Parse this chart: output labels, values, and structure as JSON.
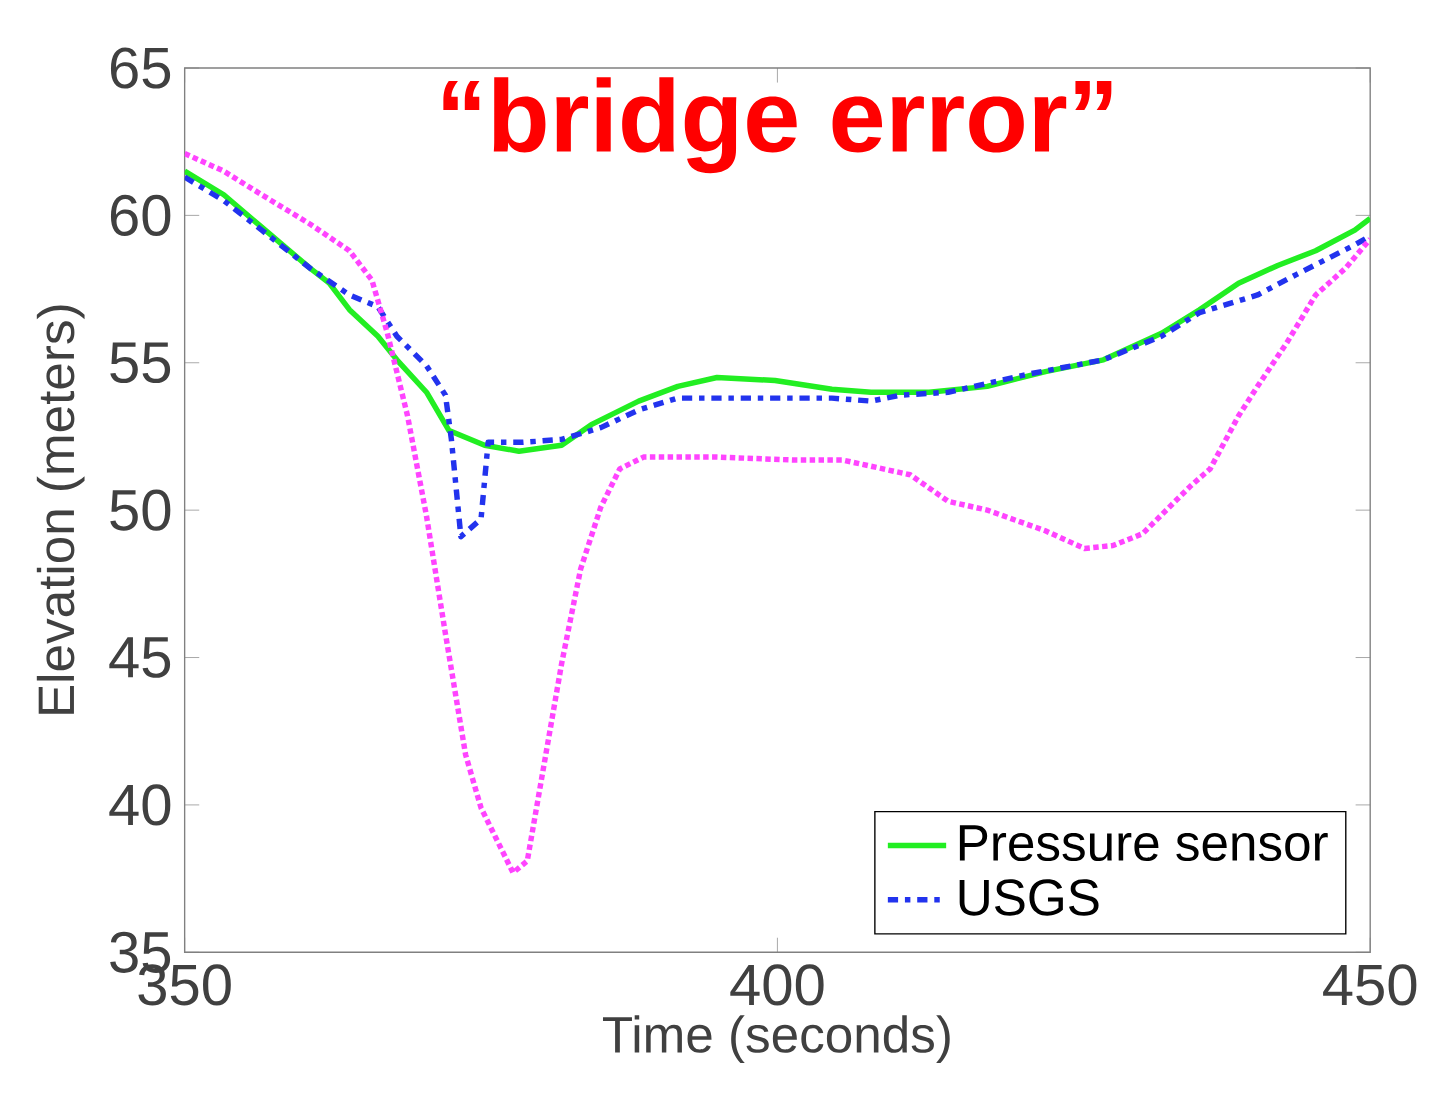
{
  "chart_data": {
    "type": "line",
    "title": "“bridge error”",
    "xlabel": "Time (seconds)",
    "ylabel": "Elevation (meters)",
    "xlim": [
      350,
      450
    ],
    "xticks": [
      350,
      400,
      450
    ],
    "ylim": [
      35,
      65
    ],
    "yticks": [
      35,
      40,
      45,
      50,
      55,
      60,
      65
    ],
    "grid": false,
    "legend": "bottom right",
    "series": [
      {
        "name": "Pressure sensor",
        "color": "#22ee22",
        "line_style": "solid",
        "x": [
          350,
          353.3,
          356.5,
          360.6,
          362.2,
          363.9,
          366.3,
          367.9,
          370.4,
          372.3,
          375.3,
          378.2,
          381.8,
          384.3,
          388.3,
          391.6,
          394.9,
          399.8,
          404.6,
          407.9,
          412.8,
          417.7,
          422.6,
          427.5,
          432.4,
          435.6,
          438.9,
          442.2,
          445.4,
          448.7,
          450
        ],
        "values": [
          61.5,
          60.7,
          59.6,
          58.2,
          57.7,
          56.8,
          55.9,
          55.1,
          54.0,
          52.7,
          52.2,
          52.0,
          52.2,
          52.9,
          53.7,
          54.2,
          54.5,
          54.4,
          54.1,
          54.0,
          54.0,
          54.2,
          54.7,
          55.1,
          56.0,
          56.8,
          57.7,
          58.3,
          58.8,
          59.5,
          59.9
        ]
      },
      {
        "name": "USGS",
        "color": "#2233ee",
        "line_style": "dashdot",
        "x": [
          350,
          353.3,
          356.5,
          360.6,
          363.9,
          366.3,
          367.9,
          370.4,
          372.0,
          372.5,
          373.3,
          375.0,
          375.6,
          378.5,
          381.8,
          385.1,
          388.3,
          391.6,
          398.1,
          404.6,
          407.9,
          410.4,
          414.4,
          421.0,
          427.5,
          432.4,
          435.6,
          440.5,
          443.8,
          448.7,
          450
        ],
        "values": [
          61.3,
          60.5,
          59.5,
          58.2,
          57.3,
          56.9,
          55.9,
          54.9,
          53.9,
          52.4,
          49.1,
          49.7,
          52.3,
          52.3,
          52.4,
          52.8,
          53.4,
          53.8,
          53.8,
          53.8,
          53.7,
          53.9,
          54.0,
          54.6,
          55.1,
          55.9,
          56.7,
          57.3,
          58.0,
          59.0,
          59.3
        ]
      },
      {
        "color": "#ff44ff",
        "line_style": "dotted",
        "x": [
          350,
          353.3,
          356.5,
          360.6,
          363.9,
          365.8,
          367.1,
          368.8,
          370.4,
          372.0,
          373.7,
          375.0,
          377.7,
          378.9,
          380.2,
          381.8,
          383.4,
          385.1,
          386.7,
          388.7,
          394.9,
          401.4,
          405.5,
          411.2,
          414.4,
          417.7,
          422.6,
          425.9,
          428.3,
          430.8,
          434.8,
          436.5,
          438.9,
          440.5,
          443.0,
          445.4,
          447.9,
          450
        ],
        "values": [
          62.1,
          61.5,
          60.7,
          59.7,
          58.8,
          57.8,
          56.0,
          53.2,
          49.8,
          45.8,
          41.7,
          39.9,
          37.7,
          38.1,
          41.1,
          44.8,
          48.0,
          50.1,
          51.4,
          51.8,
          51.8,
          51.7,
          51.7,
          51.2,
          50.3,
          50.0,
          49.3,
          48.7,
          48.8,
          49.2,
          50.8,
          51.4,
          53.2,
          54.2,
          55.7,
          57.3,
          58.2,
          59.2
        ]
      }
    ]
  }
}
